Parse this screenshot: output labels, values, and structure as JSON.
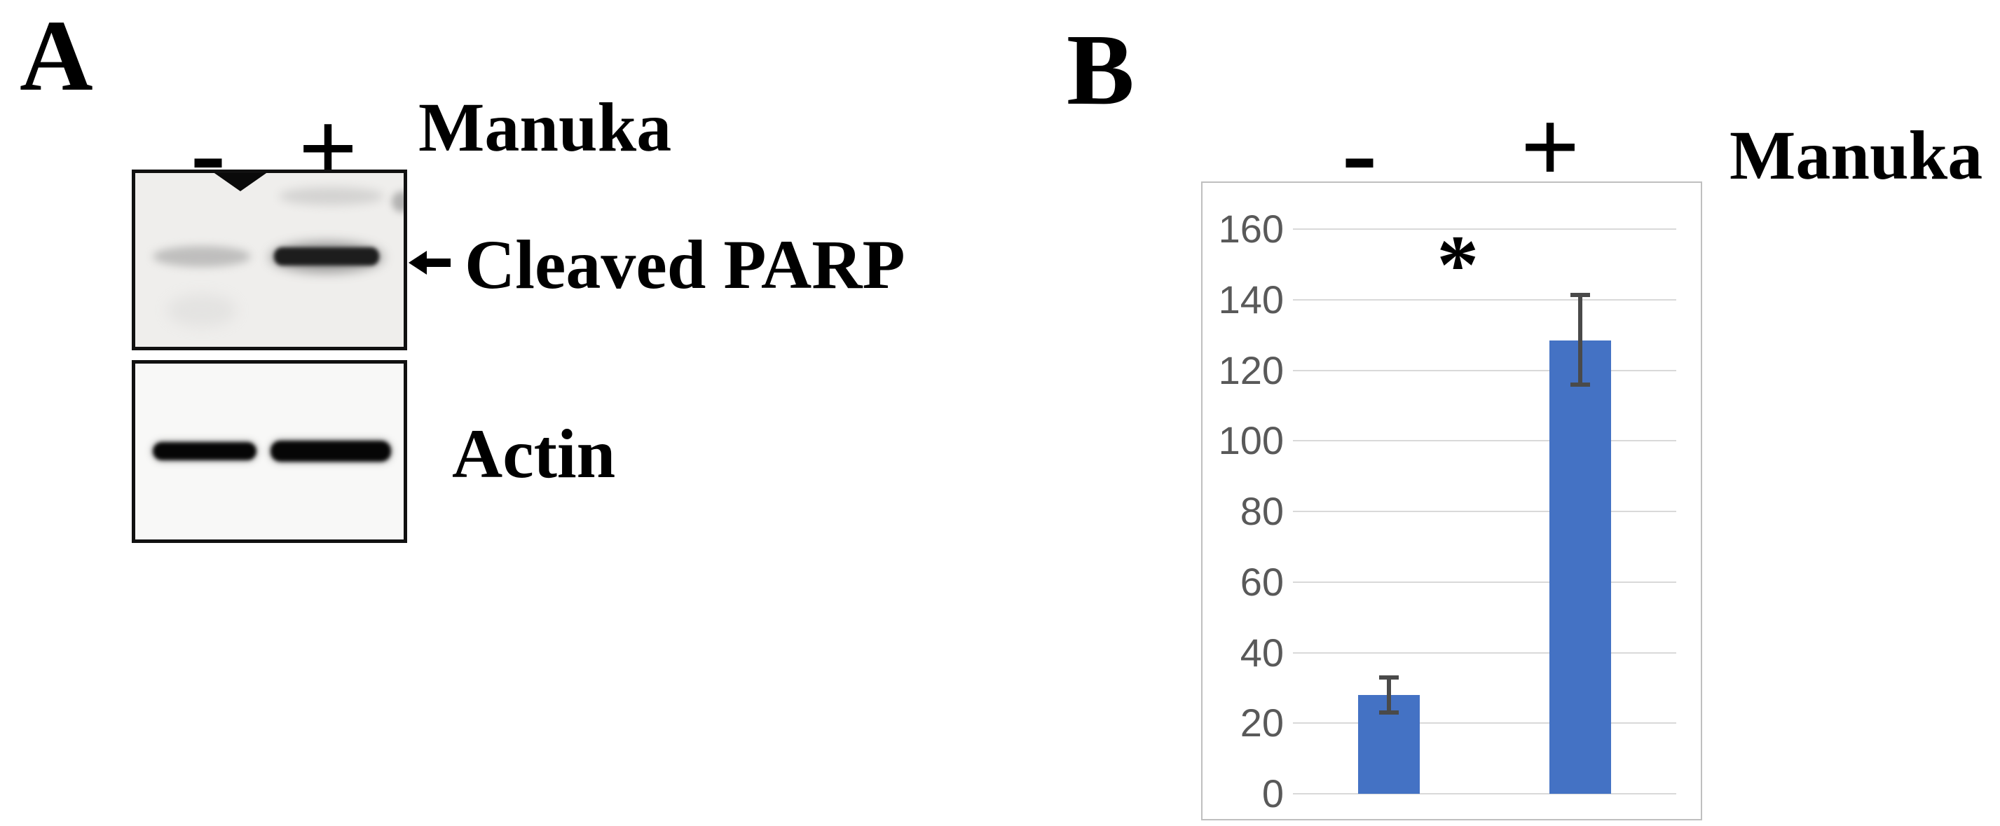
{
  "panel_a": {
    "label": "A",
    "lane_minus": "-",
    "lane_plus": "+",
    "treatment": "Manuka",
    "arrow_icon": "left-arrow",
    "band_label_top": "Cleaved PARP",
    "band_label_bottom": "Actin"
  },
  "panel_b": {
    "label": "B",
    "lane_minus": "-",
    "lane_plus": "+",
    "treatment": "Manuka"
  },
  "chart_data": {
    "type": "bar",
    "title": "",
    "xlabel": "",
    "ylabel": "",
    "categories": [
      "-",
      "+"
    ],
    "values": [
      28,
      128.5
    ],
    "error_up": [
      5,
      13
    ],
    "error_down": [
      5,
      12.5
    ],
    "yticks": [
      0,
      20,
      40,
      60,
      80,
      100,
      120,
      140,
      160
    ],
    "ylim": [
      0,
      170
    ],
    "grid": true,
    "legend": false,
    "annotation": {
      "text": "*",
      "x_frac": 0.43,
      "y_value": 150
    },
    "colors": {
      "bar": "#4472C4",
      "gridline": "#d9d9d9",
      "error_bar": "#4a4a4a",
      "tick_label": "#595959",
      "chart_border": "#bfbfbf"
    }
  }
}
